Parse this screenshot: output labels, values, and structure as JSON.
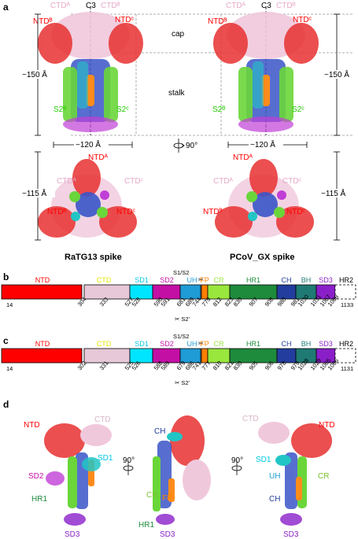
{
  "panels": {
    "a": "a",
    "b": "b",
    "c": "c",
    "d": "d"
  },
  "panel_a": {
    "c3_left": "C3",
    "c3_right": "C3",
    "cap": "cap",
    "stalk": "stalk",
    "height_left": "~150 Å",
    "height_right": "~150 Å",
    "width_left": "~120 Å",
    "width_right": "~120 Å",
    "rot": "90°",
    "bottom_height_left": "~115 Å",
    "bottom_height_right": "~115 Å",
    "left_title": "RaTG13 spike",
    "right_title": "PCoV_GX spike",
    "labels": {
      "ctd_a": "CTDᴬ",
      "ctd_b": "CTDᴮ",
      "ntd_b": "NTDᴮ",
      "ntd_c": "NTDᶜ",
      "s2_b": "S2ᴮ",
      "s2_c": "S2ᶜ",
      "ntd_a": "NTDᴬ",
      "ctd_c": "CTDᶜ"
    }
  },
  "colors": {
    "NTD": "#ff0000",
    "CTD": "#e6c8d8",
    "SD1": "#00e5ff",
    "SD2": "#c40fa5",
    "UH": "#1f9bd6",
    "FP": "#ff7f00",
    "CR": "#99e63d",
    "HR1": "#1e8a3c",
    "CH": "#233d9e",
    "BH": "#1f7a73",
    "SD3": "#8a1fc9",
    "HR2": "#ffffff"
  },
  "domain_map_b": {
    "segments": [
      {
        "name": "NTD",
        "label_color": "#ff0000",
        "color": "#ff0000"
      },
      {
        "name": "CTD",
        "label_color": "#e6e600",
        "color": "#e6c8d8"
      },
      {
        "name": "SD1",
        "label_color": "#00c8e6",
        "color": "#00e5ff"
      },
      {
        "name": "SD2",
        "label_color": "#c40fa5",
        "color": "#c40fa5"
      },
      {
        "name": "UH",
        "label_color": "#1f9bd6",
        "color": "#1f9bd6"
      },
      {
        "name": "FP",
        "label_color": "#ff7f00",
        "color": "#ff7f00"
      },
      {
        "name": "CR",
        "label_color": "#99e63d",
        "color": "#99e63d"
      },
      {
        "name": "HR1",
        "label_color": "#1e8a3c",
        "color": "#1e8a3c"
      },
      {
        "name": "CH",
        "label_color": "#233d9e",
        "color": "#233d9e"
      },
      {
        "name": "BH",
        "label_color": "#1f7a73",
        "color": "#1f7a73"
      },
      {
        "name": "SD3",
        "label_color": "#8a1fc9",
        "color": "#8a1fc9"
      },
      {
        "name": "HR2",
        "label_color": "#000000",
        "color": "#ffffff"
      }
    ],
    "cleavage_top": "S1/S2",
    "cleavage_bottom": "S2'",
    "numbers": [
      "14",
      "304",
      "333",
      "527",
      "528",
      "590",
      "591",
      "681",
      "689",
      "744",
      "779",
      "812",
      "823",
      "830",
      "907",
      "908",
      "980",
      "981",
      "1030",
      "1031",
      "1067",
      "1068",
      "1133"
    ]
  },
  "domain_map_c": {
    "cleavage_top": "S1/S2",
    "cleavage_bottom": "S2'",
    "numbers": [
      "14",
      "302",
      "331",
      "525",
      "526",
      "588",
      "589",
      "679",
      "686",
      "741",
      "777",
      "810",
      "821",
      "830",
      "905",
      "906",
      "978",
      "979",
      "1028",
      "1029",
      "1065",
      "1066",
      "1131"
    ]
  },
  "panel_d": {
    "left": {
      "ntd": "NTD",
      "ctd": "CTD",
      "sd1": "SD1",
      "sd2": "SD2",
      "hr1": "HR1",
      "sd3": "SD3"
    },
    "rot1": "90°",
    "middle": {
      "ch": "CH",
      "cr": "CR",
      "fp": "FP",
      "hr1": "HR1",
      "sd3": "SD3"
    },
    "rot2": "90°",
    "right": {
      "ctd": "CTD",
      "ntd": "NTD",
      "sd1": "SD1",
      "uh": "UH",
      "cr": "CR",
      "ch": "CH",
      "sd3": "SD3"
    }
  }
}
